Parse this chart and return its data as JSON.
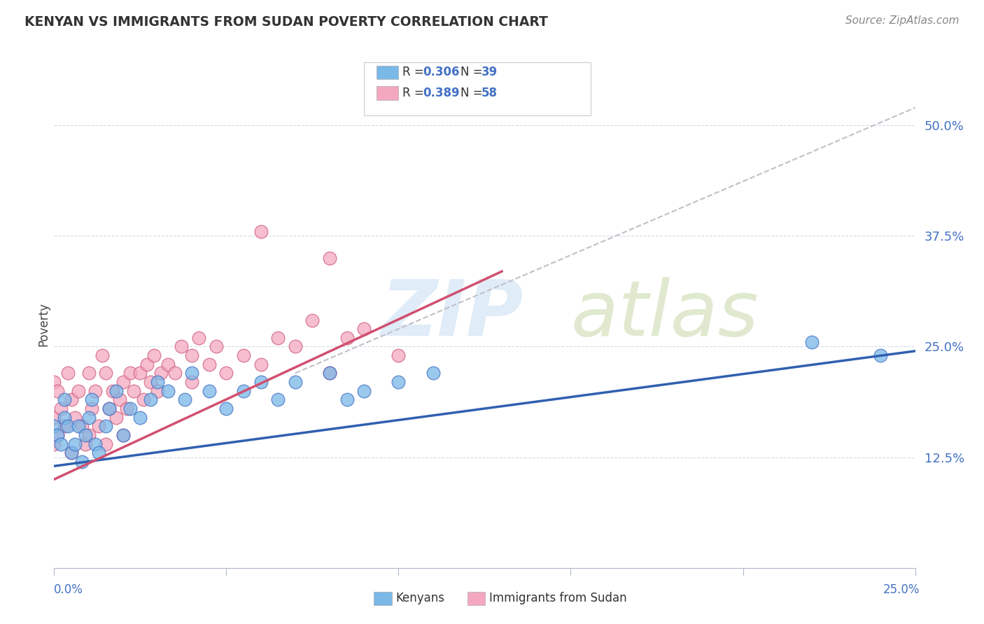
{
  "title": "KENYAN VS IMMIGRANTS FROM SUDAN POVERTY CORRELATION CHART",
  "source": "Source: ZipAtlas.com",
  "ylabel": "Poverty",
  "yticks": [
    0.125,
    0.25,
    0.375,
    0.5
  ],
  "ytick_labels": [
    "12.5%",
    "25.0%",
    "37.5%",
    "50.0%"
  ],
  "xlim": [
    0.0,
    0.25
  ],
  "ylim": [
    0.0,
    0.55
  ],
  "kenyan_color": "#7ab8e8",
  "kenyan_edge_color": "#4472C4",
  "sudan_color": "#f4a8c0",
  "sudan_edge_color": "#d06080",
  "trendline_kenyan_color": "#3060b0",
  "trendline_sudan_color": "#d05070",
  "dashed_line_color": "#c0c0c8",
  "grid_color": "#d0dce8",
  "kenyan_R": "0.306",
  "kenyan_N": "39",
  "sudan_R": "0.389",
  "sudan_N": "58",
  "kenyan_x": [
    0.0,
    0.001,
    0.002,
    0.003,
    0.003,
    0.004,
    0.005,
    0.006,
    0.007,
    0.008,
    0.009,
    0.01,
    0.011,
    0.012,
    0.013,
    0.015,
    0.016,
    0.018,
    0.02,
    0.022,
    0.025,
    0.028,
    0.03,
    0.033,
    0.038,
    0.04,
    0.045,
    0.05,
    0.055,
    0.06,
    0.065,
    0.07,
    0.08,
    0.085,
    0.09,
    0.1,
    0.11,
    0.22,
    0.24
  ],
  "kenyan_y": [
    0.16,
    0.15,
    0.14,
    0.17,
    0.19,
    0.16,
    0.13,
    0.14,
    0.16,
    0.12,
    0.15,
    0.17,
    0.19,
    0.14,
    0.13,
    0.16,
    0.18,
    0.2,
    0.15,
    0.18,
    0.17,
    0.19,
    0.21,
    0.2,
    0.19,
    0.22,
    0.2,
    0.18,
    0.2,
    0.21,
    0.19,
    0.21,
    0.22,
    0.19,
    0.2,
    0.21,
    0.22,
    0.255,
    0.24
  ],
  "sudan_x": [
    0.0,
    0.0,
    0.0,
    0.001,
    0.001,
    0.002,
    0.003,
    0.004,
    0.005,
    0.005,
    0.006,
    0.007,
    0.008,
    0.009,
    0.01,
    0.01,
    0.011,
    0.012,
    0.013,
    0.014,
    0.015,
    0.015,
    0.016,
    0.017,
    0.018,
    0.019,
    0.02,
    0.02,
    0.021,
    0.022,
    0.023,
    0.025,
    0.026,
    0.027,
    0.028,
    0.029,
    0.03,
    0.031,
    0.033,
    0.035,
    0.037,
    0.04,
    0.04,
    0.042,
    0.045,
    0.047,
    0.05,
    0.055,
    0.06,
    0.065,
    0.07,
    0.075,
    0.08,
    0.085,
    0.09,
    0.1,
    0.06,
    0.08
  ],
  "sudan_y": [
    0.14,
    0.17,
    0.21,
    0.15,
    0.2,
    0.18,
    0.16,
    0.22,
    0.13,
    0.19,
    0.17,
    0.2,
    0.16,
    0.14,
    0.15,
    0.22,
    0.18,
    0.2,
    0.16,
    0.24,
    0.14,
    0.22,
    0.18,
    0.2,
    0.17,
    0.19,
    0.15,
    0.21,
    0.18,
    0.22,
    0.2,
    0.22,
    0.19,
    0.23,
    0.21,
    0.24,
    0.2,
    0.22,
    0.23,
    0.22,
    0.25,
    0.21,
    0.24,
    0.26,
    0.23,
    0.25,
    0.22,
    0.24,
    0.23,
    0.26,
    0.25,
    0.28,
    0.22,
    0.26,
    0.27,
    0.24,
    0.38,
    0.35
  ],
  "kenyan_line_x": [
    0.0,
    0.25
  ],
  "kenyan_line_y": [
    0.115,
    0.245
  ],
  "sudan_line_x": [
    0.0,
    0.13
  ],
  "sudan_line_y": [
    0.1,
    0.335
  ],
  "dash_line_x": [
    0.07,
    0.25
  ],
  "dash_line_y": [
    0.22,
    0.52
  ]
}
